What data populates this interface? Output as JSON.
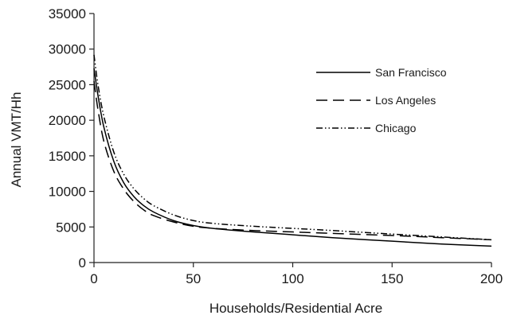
{
  "chart_data": {
    "type": "line",
    "title": "",
    "xlabel": "Households/Residential Acre",
    "ylabel": "Annual VMT/Hh",
    "xlim": [
      0,
      200
    ],
    "ylim": [
      0,
      35000
    ],
    "xticks": [
      0,
      50,
      100,
      150,
      200
    ],
    "yticks": [
      0,
      5000,
      10000,
      15000,
      20000,
      25000,
      30000,
      35000
    ],
    "grid": false,
    "legend_position": "top-right",
    "series": [
      {
        "name": "San Francisco",
        "style": "solid",
        "color": "#000000",
        "points": [
          [
            0,
            27300
          ],
          [
            2,
            23500
          ],
          [
            5,
            19000
          ],
          [
            10,
            14200
          ],
          [
            15,
            11200
          ],
          [
            20,
            9300
          ],
          [
            25,
            8000
          ],
          [
            30,
            7100
          ],
          [
            40,
            5900
          ],
          [
            50,
            5200
          ],
          [
            60,
            4800
          ],
          [
            80,
            4300
          ],
          [
            100,
            3900
          ],
          [
            120,
            3500
          ],
          [
            150,
            3000
          ],
          [
            175,
            2600
          ],
          [
            200,
            2300
          ]
        ]
      },
      {
        "name": "Los Angeles",
        "style": "dashed",
        "color": "#000000",
        "points": [
          [
            0,
            25500
          ],
          [
            2,
            21500
          ],
          [
            5,
            17000
          ],
          [
            10,
            12800
          ],
          [
            15,
            10300
          ],
          [
            20,
            8600
          ],
          [
            25,
            7400
          ],
          [
            30,
            6600
          ],
          [
            40,
            5700
          ],
          [
            50,
            5100
          ],
          [
            60,
            4800
          ],
          [
            80,
            4500
          ],
          [
            100,
            4300
          ],
          [
            120,
            4100
          ],
          [
            150,
            3800
          ],
          [
            175,
            3500
          ],
          [
            200,
            3200
          ]
        ]
      },
      {
        "name": "Chicago",
        "style": "dash-dot-dot",
        "color": "#000000",
        "points": [
          [
            0,
            29200
          ],
          [
            2,
            25000
          ],
          [
            5,
            20500
          ],
          [
            10,
            15500
          ],
          [
            15,
            12400
          ],
          [
            20,
            10400
          ],
          [
            25,
            9000
          ],
          [
            30,
            8000
          ],
          [
            40,
            6700
          ],
          [
            50,
            5900
          ],
          [
            60,
            5500
          ],
          [
            80,
            5100
          ],
          [
            100,
            4800
          ],
          [
            120,
            4500
          ],
          [
            150,
            4000
          ],
          [
            175,
            3600
          ],
          [
            200,
            3200
          ]
        ]
      }
    ]
  }
}
